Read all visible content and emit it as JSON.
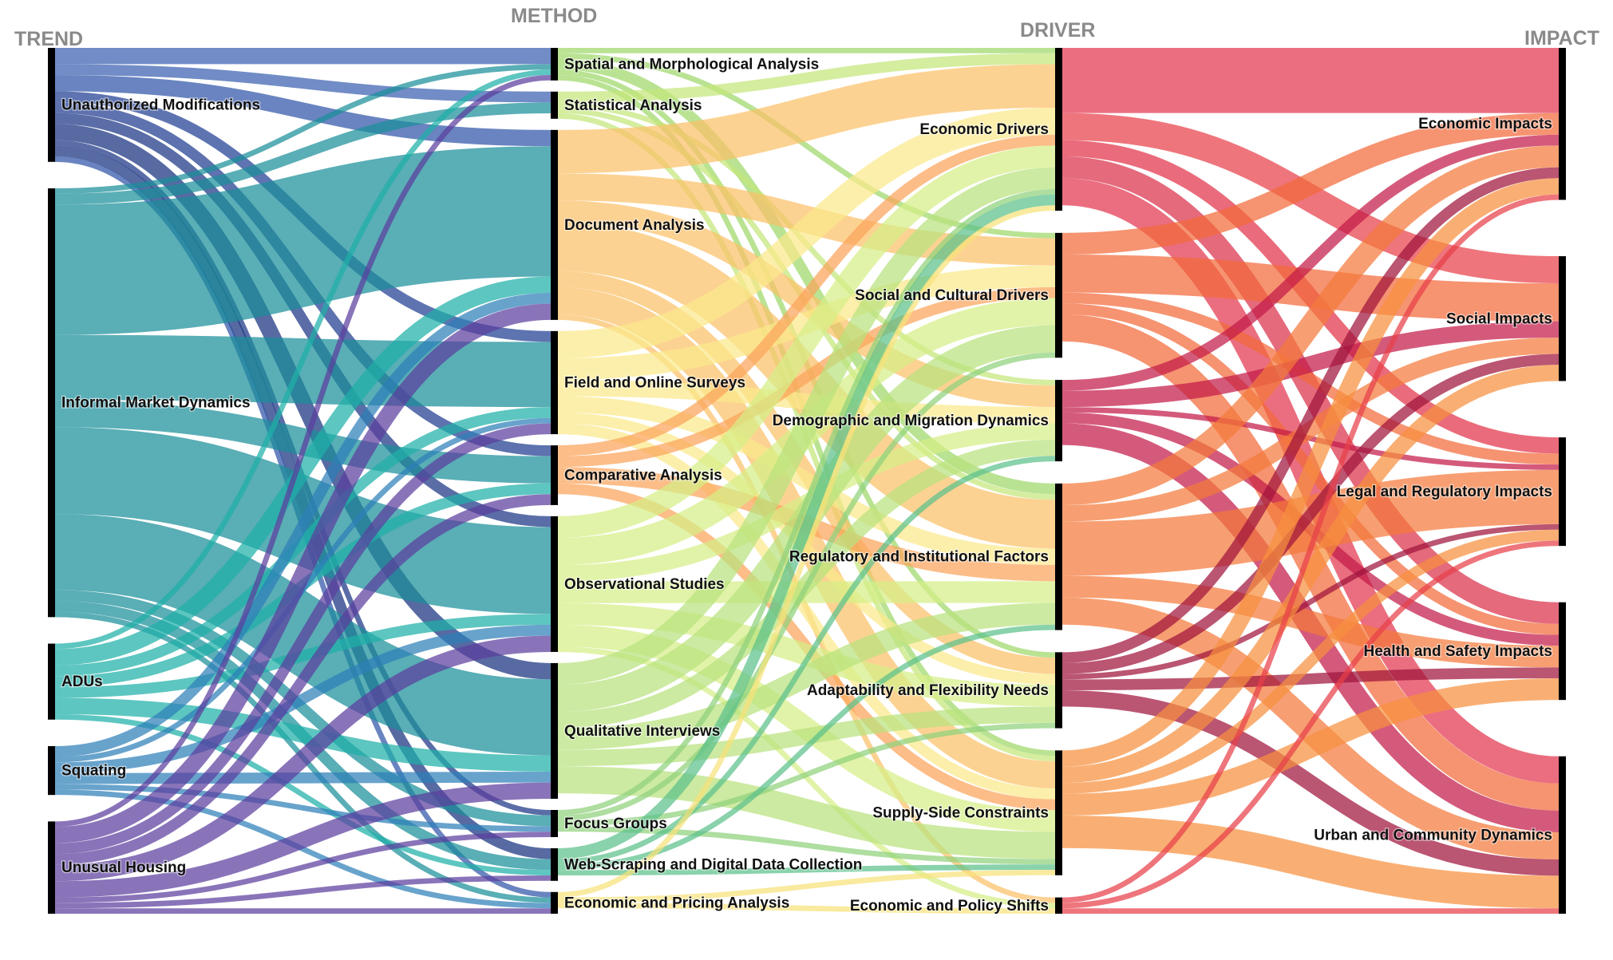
{
  "diagram": {
    "type": "sankey",
    "columns": [
      {
        "id": "trend",
        "heading": "TREND"
      },
      {
        "id": "method",
        "heading": "METHOD"
      },
      {
        "id": "driver",
        "heading": "DRIVER"
      },
      {
        "id": "impact",
        "heading": "IMPACT"
      }
    ],
    "nodes": {
      "trend": [
        {
          "id": "t_mod",
          "label": "Unauthorized Modifications",
          "color": "#3a5fb0"
        },
        {
          "id": "t_imd",
          "label": "Informal Market Dynamics",
          "color": "#1a8f9a"
        },
        {
          "id": "t_adu",
          "label": "ADUs",
          "color": "#1fb0a8"
        },
        {
          "id": "t_squ",
          "label": "Squating",
          "color": "#2e7fb8"
        },
        {
          "id": "t_unu",
          "label": "Unusual Housing",
          "color": "#5b3f9e"
        }
      ],
      "method": [
        {
          "id": "m_spa",
          "label": "Spatial and Morphological Analysis",
          "color": "#9ed86a"
        },
        {
          "id": "m_sta",
          "label": "Statistical Analysis",
          "color": "#c4e67a"
        },
        {
          "id": "m_doc",
          "label": "Document Analysis",
          "color": "#fbc168"
        },
        {
          "id": "m_fie",
          "label": "Field and Online Surveys",
          "color": "#fbe98a"
        },
        {
          "id": "m_com",
          "label": "Comparative Analysis",
          "color": "#fba35a"
        },
        {
          "id": "m_obs",
          "label": "Observational Studies",
          "color": "#d6ee86"
        },
        {
          "id": "m_qua",
          "label": "Qualitative Interviews",
          "color": "#b9e27d"
        },
        {
          "id": "m_foc",
          "label": "Focus Groups",
          "color": "#8fd17c"
        },
        {
          "id": "m_web",
          "label": "Web-Scraping and Digital Data Collection",
          "color": "#5cc08a"
        },
        {
          "id": "m_eco",
          "label": "Economic and Pricing Analysis",
          "color": "#f6e27a"
        }
      ],
      "driver": [
        {
          "id": "d_eco",
          "label": "Economic Drivers",
          "color": "#fbb75c"
        },
        {
          "id": "d_soc",
          "label": "Social and Cultural Drivers",
          "color": "#c6e69a"
        },
        {
          "id": "d_dem",
          "label": "Demographic and Migration Dynamics",
          "color": "#fbcf78"
        },
        {
          "id": "d_reg",
          "label": "Regulatory and Institutional Factors",
          "color": "#dcef8c"
        },
        {
          "id": "d_ada",
          "label": "Adaptability and Flexibility Needs",
          "color": "#f6e68a"
        },
        {
          "id": "d_sup",
          "label": "Supply-Side Constraints",
          "color": "#fbc06a"
        },
        {
          "id": "d_pol",
          "label": "Economic and Policy Shifts",
          "color": "#a8dc8a"
        }
      ],
      "impact": [
        {
          "id": "i_eco",
          "label": "Economic Impacts",
          "color": "#e2364e"
        },
        {
          "id": "i_soc",
          "label": "Social Impacts",
          "color": "#f36a3a"
        },
        {
          "id": "i_leg",
          "label": "Legal and Regulatory Impacts",
          "color": "#f47a3c"
        },
        {
          "id": "i_hea",
          "label": "Health and Safety Impacts",
          "color": "#f7903e"
        },
        {
          "id": "i_urb",
          "label": "Urban and Community Dynamics",
          "color": "#f57838"
        }
      ]
    },
    "links": [
      {
        "source": "t_mod",
        "target": "m_spa",
        "value": 3,
        "color": "#3a5fb0"
      },
      {
        "source": "t_mod",
        "target": "m_sta",
        "value": 2,
        "color": "#3a5fb0"
      },
      {
        "source": "t_mod",
        "target": "m_doc",
        "value": 3,
        "color": "#2f55a8"
      },
      {
        "source": "t_mod",
        "target": "m_fie",
        "value": 2,
        "color": "#203f93"
      },
      {
        "source": "t_mod",
        "target": "m_com",
        "value": 2,
        "color": "#1f3c8f"
      },
      {
        "source": "t_mod",
        "target": "m_obs",
        "value": 2,
        "color": "#1b3585"
      },
      {
        "source": "t_mod",
        "target": "m_qua",
        "value": 3,
        "color": "#16307e"
      },
      {
        "source": "t_mod",
        "target": "m_foc",
        "value": 1,
        "color": "#1b3585"
      },
      {
        "source": "t_mod",
        "target": "m_web",
        "value": 2,
        "color": "#16307e"
      },
      {
        "source": "t_mod",
        "target": "m_eco",
        "value": 1,
        "color": "#2f55a8"
      },
      {
        "source": "t_imd",
        "target": "m_spa",
        "value": 1,
        "color": "#1a8f9a"
      },
      {
        "source": "t_imd",
        "target": "m_sta",
        "value": 2,
        "color": "#1a8f9a"
      },
      {
        "source": "t_imd",
        "target": "m_doc",
        "value": 24,
        "color": "#1a8f9a"
      },
      {
        "source": "t_imd",
        "target": "m_fie",
        "value": 12,
        "color": "#1a8f9a"
      },
      {
        "source": "t_imd",
        "target": "m_com",
        "value": 5,
        "color": "#1a8f9a"
      },
      {
        "source": "t_imd",
        "target": "m_obs",
        "value": 16,
        "color": "#1a8f9a"
      },
      {
        "source": "t_imd",
        "target": "m_qua",
        "value": 14,
        "color": "#1a8f9a"
      },
      {
        "source": "t_imd",
        "target": "m_foc",
        "value": 2,
        "color": "#1a8f9a"
      },
      {
        "source": "t_imd",
        "target": "m_web",
        "value": 2,
        "color": "#1a8f9a"
      },
      {
        "source": "t_imd",
        "target": "m_eco",
        "value": 1,
        "color": "#1a8f9a"
      },
      {
        "source": "t_adu",
        "target": "m_spa",
        "value": 1,
        "color": "#1fb0a8"
      },
      {
        "source": "t_adu",
        "target": "m_doc",
        "value": 3,
        "color": "#1fb0a8"
      },
      {
        "source": "t_adu",
        "target": "m_fie",
        "value": 2,
        "color": "#1fb0a8"
      },
      {
        "source": "t_adu",
        "target": "m_com",
        "value": 2,
        "color": "#1fb0a8"
      },
      {
        "source": "t_adu",
        "target": "m_obs",
        "value": 2,
        "color": "#1fb0a8"
      },
      {
        "source": "t_adu",
        "target": "m_qua",
        "value": 3,
        "color": "#1fb0a8"
      },
      {
        "source": "t_adu",
        "target": "m_web",
        "value": 1,
        "color": "#1fb0a8"
      },
      {
        "source": "t_squ",
        "target": "m_doc",
        "value": 2,
        "color": "#2e7fb8"
      },
      {
        "source": "t_squ",
        "target": "m_fie",
        "value": 1,
        "color": "#2e7fb8"
      },
      {
        "source": "t_squ",
        "target": "m_obs",
        "value": 2,
        "color": "#2e7fb8"
      },
      {
        "source": "t_squ",
        "target": "m_qua",
        "value": 2,
        "color": "#2e7fb8"
      },
      {
        "source": "t_squ",
        "target": "m_foc",
        "value": 1,
        "color": "#2e7fb8"
      },
      {
        "source": "t_squ",
        "target": "m_eco",
        "value": 1,
        "color": "#2e7fb8"
      },
      {
        "source": "t_unu",
        "target": "m_spa",
        "value": 1,
        "color": "#5b3f9e"
      },
      {
        "source": "t_unu",
        "target": "m_doc",
        "value": 3,
        "color": "#5b3f9e"
      },
      {
        "source": "t_unu",
        "target": "m_fie",
        "value": 2,
        "color": "#5b3f9e"
      },
      {
        "source": "t_unu",
        "target": "m_com",
        "value": 2,
        "color": "#5b3f9e"
      },
      {
        "source": "t_unu",
        "target": "m_obs",
        "value": 3,
        "color": "#5b3f9e"
      },
      {
        "source": "t_unu",
        "target": "m_qua",
        "value": 3,
        "color": "#5b3f9e"
      },
      {
        "source": "t_unu",
        "target": "m_foc",
        "value": 1,
        "color": "#5b3f9e"
      },
      {
        "source": "t_unu",
        "target": "m_web",
        "value": 1,
        "color": "#5b3f9e"
      },
      {
        "source": "t_unu",
        "target": "m_eco",
        "value": 1,
        "color": "#5b3f9e"
      },
      {
        "source": "m_spa",
        "target": "d_eco",
        "value": 1,
        "color": "#9ed86a"
      },
      {
        "source": "m_spa",
        "target": "d_soc",
        "value": 1,
        "color": "#9ed86a"
      },
      {
        "source": "m_spa",
        "target": "d_reg",
        "value": 2,
        "color": "#9ed86a"
      },
      {
        "source": "m_spa",
        "target": "d_sup",
        "value": 1,
        "color": "#9ed86a"
      },
      {
        "source": "m_spa",
        "target": "d_ada",
        "value": 1,
        "color": "#9ed86a"
      },
      {
        "source": "m_sta",
        "target": "d_eco",
        "value": 2,
        "color": "#c4e67a"
      },
      {
        "source": "m_sta",
        "target": "d_dem",
        "value": 1,
        "color": "#c4e67a"
      },
      {
        "source": "m_sta",
        "target": "d_reg",
        "value": 1,
        "color": "#c4e67a"
      },
      {
        "source": "m_sta",
        "target": "d_sup",
        "value": 1,
        "color": "#c4e67a"
      },
      {
        "source": "m_doc",
        "target": "d_eco",
        "value": 8,
        "color": "#fbc168"
      },
      {
        "source": "m_doc",
        "target": "d_soc",
        "value": 5,
        "color": "#fbc168"
      },
      {
        "source": "m_doc",
        "target": "d_dem",
        "value": 4,
        "color": "#fbc168"
      },
      {
        "source": "m_doc",
        "target": "d_reg",
        "value": 9,
        "color": "#fbc168"
      },
      {
        "source": "m_doc",
        "target": "d_ada",
        "value": 3,
        "color": "#fbc168"
      },
      {
        "source": "m_doc",
        "target": "d_sup",
        "value": 5,
        "color": "#fbc168"
      },
      {
        "source": "m_doc",
        "target": "d_pol",
        "value": 1,
        "color": "#fbc168"
      },
      {
        "source": "m_fie",
        "target": "d_eco",
        "value": 5,
        "color": "#fbe98a"
      },
      {
        "source": "m_fie",
        "target": "d_soc",
        "value": 4,
        "color": "#fbe98a"
      },
      {
        "source": "m_fie",
        "target": "d_dem",
        "value": 3,
        "color": "#fbe98a"
      },
      {
        "source": "m_fie",
        "target": "d_reg",
        "value": 3,
        "color": "#fbe98a"
      },
      {
        "source": "m_fie",
        "target": "d_ada",
        "value": 2,
        "color": "#fbe98a"
      },
      {
        "source": "m_fie",
        "target": "d_sup",
        "value": 2,
        "color": "#fbe98a"
      },
      {
        "source": "m_com",
        "target": "d_eco",
        "value": 2,
        "color": "#fba35a"
      },
      {
        "source": "m_com",
        "target": "d_soc",
        "value": 2,
        "color": "#fba35a"
      },
      {
        "source": "m_com",
        "target": "d_reg",
        "value": 3,
        "color": "#fba35a"
      },
      {
        "source": "m_com",
        "target": "d_sup",
        "value": 2,
        "color": "#fba35a"
      },
      {
        "source": "m_obs",
        "target": "d_eco",
        "value": 4,
        "color": "#d6ee86"
      },
      {
        "source": "m_obs",
        "target": "d_soc",
        "value": 5,
        "color": "#d6ee86"
      },
      {
        "source": "m_obs",
        "target": "d_dem",
        "value": 3,
        "color": "#d6ee86"
      },
      {
        "source": "m_obs",
        "target": "d_reg",
        "value": 4,
        "color": "#d6ee86"
      },
      {
        "source": "m_obs",
        "target": "d_ada",
        "value": 4,
        "color": "#d6ee86"
      },
      {
        "source": "m_obs",
        "target": "d_sup",
        "value": 4,
        "color": "#d6ee86"
      },
      {
        "source": "m_obs",
        "target": "d_pol",
        "value": 1,
        "color": "#d6ee86"
      },
      {
        "source": "m_qua",
        "target": "d_eco",
        "value": 4,
        "color": "#b9e27d"
      },
      {
        "source": "m_qua",
        "target": "d_soc",
        "value": 5,
        "color": "#b9e27d"
      },
      {
        "source": "m_qua",
        "target": "d_dem",
        "value": 3,
        "color": "#b9e27d"
      },
      {
        "source": "m_qua",
        "target": "d_reg",
        "value": 4,
        "color": "#b9e27d"
      },
      {
        "source": "m_qua",
        "target": "d_ada",
        "value": 3,
        "color": "#b9e27d"
      },
      {
        "source": "m_qua",
        "target": "d_sup",
        "value": 5,
        "color": "#b9e27d"
      },
      {
        "source": "m_foc",
        "target": "d_eco",
        "value": 1,
        "color": "#8fd17c"
      },
      {
        "source": "m_foc",
        "target": "d_soc",
        "value": 1,
        "color": "#8fd17c"
      },
      {
        "source": "m_foc",
        "target": "d_ada",
        "value": 1,
        "color": "#8fd17c"
      },
      {
        "source": "m_foc",
        "target": "d_sup",
        "value": 1,
        "color": "#8fd17c"
      },
      {
        "source": "m_web",
        "target": "d_eco",
        "value": 2,
        "color": "#5cc08a"
      },
      {
        "source": "m_web",
        "target": "d_dem",
        "value": 1,
        "color": "#5cc08a"
      },
      {
        "source": "m_web",
        "target": "d_reg",
        "value": 1,
        "color": "#5cc08a"
      },
      {
        "source": "m_web",
        "target": "d_sup",
        "value": 1,
        "color": "#5cc08a"
      },
      {
        "source": "m_eco",
        "target": "d_eco",
        "value": 1,
        "color": "#f6e27a"
      },
      {
        "source": "m_eco",
        "target": "d_sup",
        "value": 1,
        "color": "#f6e27a"
      },
      {
        "source": "m_eco",
        "target": "d_pol",
        "value": 1,
        "color": "#f6e27a"
      },
      {
        "source": "d_eco",
        "target": "i_eco",
        "value": 12,
        "color": "#e2364e"
      },
      {
        "source": "d_eco",
        "target": "i_soc",
        "value": 5,
        "color": "#e8404a"
      },
      {
        "source": "d_eco",
        "target": "i_leg",
        "value": 3,
        "color": "#e23248"
      },
      {
        "source": "d_eco",
        "target": "i_hea",
        "value": 4,
        "color": "#d9304a"
      },
      {
        "source": "d_eco",
        "target": "i_urb",
        "value": 5,
        "color": "#e2364e"
      },
      {
        "source": "d_soc",
        "target": "i_eco",
        "value": 4,
        "color": "#f36a3a"
      },
      {
        "source": "d_soc",
        "target": "i_soc",
        "value": 7,
        "color": "#f36a3a"
      },
      {
        "source": "d_soc",
        "target": "i_leg",
        "value": 2,
        "color": "#f36a3a"
      },
      {
        "source": "d_soc",
        "target": "i_hea",
        "value": 2,
        "color": "#f36a3a"
      },
      {
        "source": "d_soc",
        "target": "i_urb",
        "value": 5,
        "color": "#f36a3a"
      },
      {
        "source": "d_dem",
        "target": "i_eco",
        "value": 2,
        "color": "#c41a48"
      },
      {
        "source": "d_dem",
        "target": "i_soc",
        "value": 3,
        "color": "#c41a48"
      },
      {
        "source": "d_dem",
        "target": "i_leg",
        "value": 1,
        "color": "#c41a48"
      },
      {
        "source": "d_dem",
        "target": "i_hea",
        "value": 2,
        "color": "#c41a48"
      },
      {
        "source": "d_dem",
        "target": "i_urb",
        "value": 4,
        "color": "#c41a48"
      },
      {
        "source": "d_reg",
        "target": "i_eco",
        "value": 4,
        "color": "#f47a3c"
      },
      {
        "source": "d_reg",
        "target": "i_soc",
        "value": 3,
        "color": "#f47a3c"
      },
      {
        "source": "d_reg",
        "target": "i_leg",
        "value": 10,
        "color": "#f47a3c"
      },
      {
        "source": "d_reg",
        "target": "i_hea",
        "value": 4,
        "color": "#f47a3c"
      },
      {
        "source": "d_reg",
        "target": "i_urb",
        "value": 5,
        "color": "#f47a3c"
      },
      {
        "source": "d_ada",
        "target": "i_eco",
        "value": 2,
        "color": "#a0143c"
      },
      {
        "source": "d_ada",
        "target": "i_soc",
        "value": 2,
        "color": "#a0143c"
      },
      {
        "source": "d_ada",
        "target": "i_leg",
        "value": 1,
        "color": "#a0143c"
      },
      {
        "source": "d_ada",
        "target": "i_hea",
        "value": 2,
        "color": "#a0143c"
      },
      {
        "source": "d_ada",
        "target": "i_urb",
        "value": 3,
        "color": "#a0143c"
      },
      {
        "source": "d_sup",
        "target": "i_eco",
        "value": 3,
        "color": "#f7903e"
      },
      {
        "source": "d_sup",
        "target": "i_soc",
        "value": 3,
        "color": "#f7903e"
      },
      {
        "source": "d_sup",
        "target": "i_leg",
        "value": 2,
        "color": "#f7903e"
      },
      {
        "source": "d_sup",
        "target": "i_hea",
        "value": 4,
        "color": "#f7903e"
      },
      {
        "source": "d_sup",
        "target": "i_urb",
        "value": 6,
        "color": "#f7903e"
      },
      {
        "source": "d_pol",
        "target": "i_eco",
        "value": 1,
        "color": "#e8404a"
      },
      {
        "source": "d_pol",
        "target": "i_leg",
        "value": 1,
        "color": "#e8404a"
      },
      {
        "source": "d_pol",
        "target": "i_urb",
        "value": 1,
        "color": "#e8404a"
      }
    ]
  }
}
